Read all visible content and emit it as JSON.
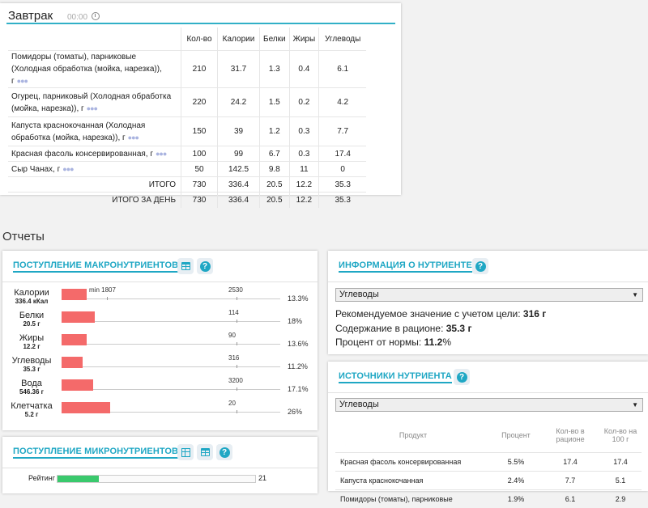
{
  "meal": {
    "title": "Завтрак",
    "time": "00:00",
    "columns": [
      "Кол-во",
      "Калории",
      "Белки",
      "Жиры",
      "Углеводы"
    ],
    "rows": [
      {
        "name": "Помидоры (томаты), парниковые (Холодная обработка (мойка, нарезка)), г",
        "qty": "210",
        "kcal": "31.7",
        "protein": "1.3",
        "fat": "0.4",
        "carbs": "6.1"
      },
      {
        "name": "Огурец, парниковый (Холодная обработка (мойка, нарезка)), г",
        "qty": "220",
        "kcal": "24.2",
        "protein": "1.5",
        "fat": "0.2",
        "carbs": "4.2"
      },
      {
        "name": "Капуста краснокочанная (Холодная обработка (мойка, нарезка)), г",
        "qty": "150",
        "kcal": "39",
        "protein": "1.2",
        "fat": "0.3",
        "carbs": "7.7"
      },
      {
        "name": "Красная фасоль консервированная, г",
        "qty": "100",
        "kcal": "99",
        "protein": "6.7",
        "fat": "0.3",
        "carbs": "17.4"
      },
      {
        "name": "Сыр Чанах, г",
        "qty": "50",
        "kcal": "142.5",
        "protein": "9.8",
        "fat": "11",
        "carbs": "0"
      }
    ],
    "totals": [
      {
        "label": "ИТОГО",
        "qty": "730",
        "kcal": "336.4",
        "protein": "20.5",
        "fat": "12.2",
        "carbs": "35.3"
      },
      {
        "label": "ИТОГО ЗА ДЕНЬ",
        "qty": "730",
        "kcal": "336.4",
        "protein": "20.5",
        "fat": "12.2",
        "carbs": "35.3"
      }
    ]
  },
  "reports_title": "Отчеты",
  "macro": {
    "title": "ПОСТУПЛЕНИЕ МАКРОНУТРИЕНТОВ",
    "min_label": "min 1807",
    "rows": [
      {
        "name": "Калории",
        "value": "336.4 кКал",
        "target": "2530",
        "pct": "13.3%",
        "fill": 0.133
      },
      {
        "name": "Белки",
        "value": "20.5 г",
        "target": "114",
        "pct": "18%",
        "fill": 0.18
      },
      {
        "name": "Жиры",
        "value": "12.2 г",
        "target": "90",
        "pct": "13.6%",
        "fill": 0.136
      },
      {
        "name": "Углеводы",
        "value": "35.3 г",
        "target": "316",
        "pct": "11.2%",
        "fill": 0.112
      },
      {
        "name": "Вода",
        "value": "546.36 г",
        "target": "3200",
        "pct": "17.1%",
        "fill": 0.171
      },
      {
        "name": "Клетчатка",
        "value": "5.2 г",
        "target": "20",
        "pct": "26%",
        "fill": 0.26
      }
    ]
  },
  "micro": {
    "title": "ПОСТУПЛЕНИЕ МИКРОНУТРИЕНТОВ",
    "rating_label": "Рейтинг",
    "rating_value": "21",
    "rating_fill": 0.21
  },
  "info": {
    "title": "ИНФОРМАЦИЯ О НУТРИЕНТЕ",
    "selected": "Углеводы",
    "recommended_label": "Рекомендуемое значение с учетом цели: ",
    "recommended_value": "316 г",
    "content_label": "Содержание в рационе: ",
    "content_value": "35.3 г",
    "percent_label": "Процент от нормы: ",
    "percent_value": "11.2",
    "percent_unit": "%"
  },
  "sources": {
    "title": "ИСТОЧНИКИ НУТРИЕНТА",
    "selected": "Углеводы",
    "columns": [
      "Продукт",
      "Процент",
      "Кол-во в рационе",
      "Кол-во на 100 г"
    ],
    "rows": [
      {
        "product": "Красная фасоль консервированная",
        "percent": "5.5%",
        "amount": "17.4",
        "per100": "17.4"
      },
      {
        "product": "Капуста краснокочанная",
        "percent": "2.4%",
        "amount": "7.7",
        "per100": "5.1"
      },
      {
        "product": "Помидоры (томаты), парниковые",
        "percent": "1.9%",
        "amount": "6.1",
        "per100": "2.9"
      }
    ]
  }
}
